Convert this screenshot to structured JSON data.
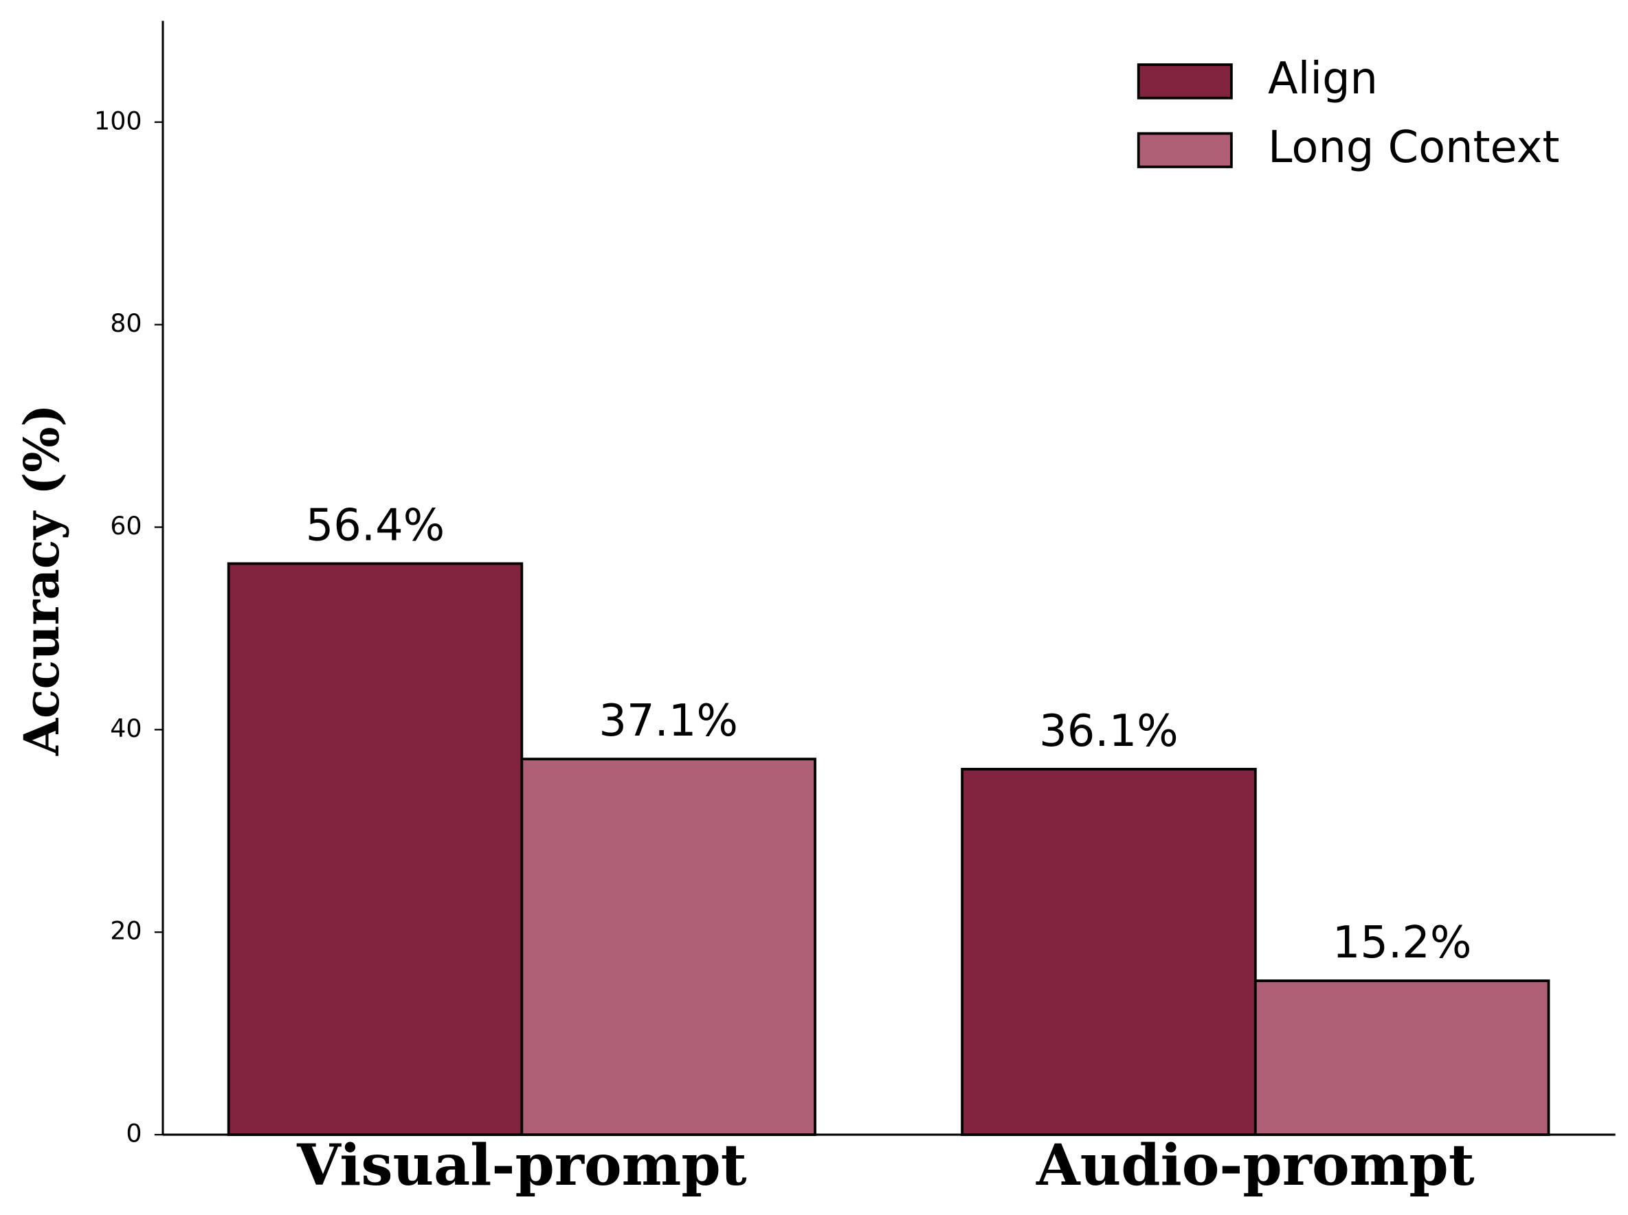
{
  "chart_data": {
    "type": "bar",
    "y_label": "Accuracy (%)",
    "categories": [
      "Visual-prompt",
      "Audio-prompt"
    ],
    "series": [
      {
        "name": "Align",
        "color": "#82233f",
        "values": [
          56.4,
          36.1
        ],
        "value_labels": [
          "56.4%",
          "36.1%"
        ]
      },
      {
        "name": "Long Context",
        "color": "#b06076",
        "values": [
          37.1,
          15.2
        ],
        "value_labels": [
          "37.1%",
          "15.2%"
        ]
      }
    ],
    "ylim": [
      0,
      110
    ],
    "yticks": [
      0,
      20,
      40,
      60,
      80,
      100
    ],
    "legend": "upper right"
  }
}
